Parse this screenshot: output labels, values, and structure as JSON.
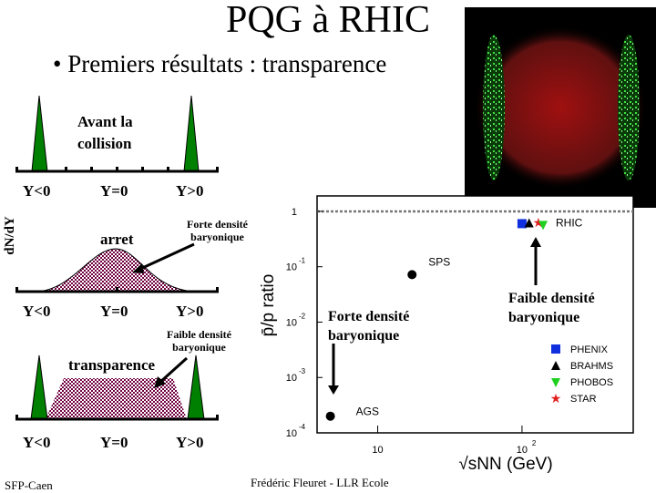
{
  "title": "PQG à RHIC",
  "bullet": "• Premiers résultats : transparence",
  "diagram": {
    "ylabel": "dN/dY",
    "panel1_label_1": "Avant la",
    "panel1_label_2": "collision",
    "panel2_label": "arret",
    "panel2_note_1": "Forte densité",
    "panel2_note_2": "baryonique",
    "panel3_label": "transparence",
    "panel3_note_1": "Faible densité",
    "panel3_note_2": "baryonique",
    "axis_labels": [
      "Y<0",
      "Y=0",
      "Y>0"
    ]
  },
  "annotations": {
    "forte_1": "Forte densité",
    "forte_2": "baryonique",
    "faible_1": "Faible densité",
    "faible_2": "baryonique"
  },
  "footer": {
    "left": "SFP-Caen",
    "center": "Frédéric Fleuret - LLR Ecole"
  },
  "chart_data": {
    "type": "scatter",
    "xscale": "log",
    "yscale": "log",
    "xlim": [
      3.8,
      590
    ],
    "ylim": [
      0.0001,
      1.9
    ],
    "ylabel": "p̄/p ratio",
    "xlabel": "√sNN (GeV)",
    "xticks": [
      {
        "v": 10,
        "label": "10",
        "sup": ""
      },
      {
        "v": 100,
        "label": "10",
        "sup": "2"
      }
    ],
    "yticks": [
      {
        "v": 1,
        "label": "1",
        "sup": ""
      },
      {
        "v": 0.1,
        "label": "10",
        "sup": "-1"
      },
      {
        "v": 0.01,
        "label": "10",
        "sup": "-2"
      },
      {
        "v": 0.001,
        "label": "10",
        "sup": "-3"
      },
      {
        "v": 0.0001,
        "label": "10",
        "sup": "-4"
      }
    ],
    "reference_line": 1,
    "points": [
      {
        "name": "AGS",
        "x": 4.7,
        "y": 0.0002,
        "marker": "circle",
        "color": "#000000"
      },
      {
        "name": "SPS",
        "x": 17.3,
        "y": 0.072,
        "marker": "circle",
        "color": "#000000"
      },
      {
        "name": "PHENIX",
        "x": 100,
        "y": 0.6,
        "marker": "square",
        "color": "#1030e0"
      },
      {
        "name": "BRAHMS",
        "x": 112,
        "y": 0.62,
        "marker": "triangle-up",
        "color": "#000000"
      },
      {
        "name": "STAR",
        "x": 130,
        "y": 0.63,
        "marker": "star",
        "color": "#e02020"
      },
      {
        "name": "PHOBOS",
        "x": 140,
        "y": 0.58,
        "marker": "triangle-down",
        "color": "#20d020"
      }
    ],
    "group_label": "RHIC",
    "legend": [
      {
        "name": "PHENIX",
        "marker": "square",
        "color": "#1030e0"
      },
      {
        "name": "BRAHMS",
        "marker": "triangle-up",
        "color": "#000000"
      },
      {
        "name": "PHOBOS",
        "marker": "triangle-down",
        "color": "#20d020"
      },
      {
        "name": "STAR",
        "marker": "star",
        "color": "#e02020"
      }
    ],
    "legend_position": "bottom-right"
  }
}
